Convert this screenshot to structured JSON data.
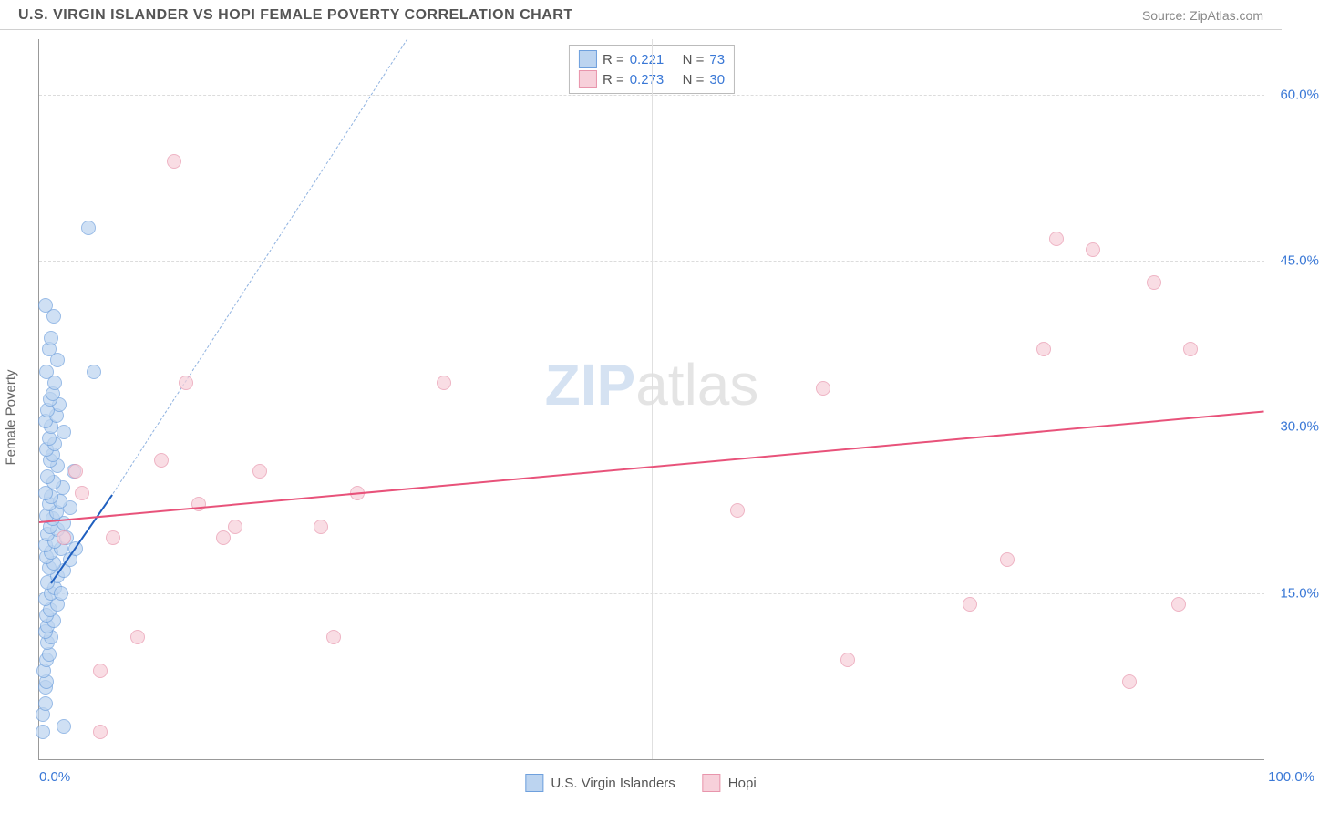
{
  "title": "U.S. VIRGIN ISLANDER VS HOPI FEMALE POVERTY CORRELATION CHART",
  "source": "Source: ZipAtlas.com",
  "watermark": {
    "part1": "ZIP",
    "part2": "atlas"
  },
  "chart": {
    "type": "scatter",
    "background_color": "#ffffff",
    "grid_color": "#dcdcdc",
    "axis_color": "#999999",
    "tick_color": "#3a78d6",
    "ylabel": "Female Poverty",
    "xlim": [
      0,
      100
    ],
    "ylim": [
      0,
      65
    ],
    "xticks": [
      {
        "value": 0,
        "label": "0.0%"
      },
      {
        "value": 100,
        "label": "100.0%"
      }
    ],
    "x_gridlines": [
      50
    ],
    "yticks": [
      {
        "value": 15,
        "label": "15.0%"
      },
      {
        "value": 30,
        "label": "30.0%"
      },
      {
        "value": 45,
        "label": "45.0%"
      },
      {
        "value": 60,
        "label": "60.0%"
      }
    ],
    "marker_radius": 8,
    "series": [
      {
        "name": "U.S. Virgin Islanders",
        "fill_color": "#bcd4f0",
        "stroke_color": "#6fa0dd",
        "fill_opacity": 0.7,
        "trend_color": "#1f5fbf",
        "trend_dash_color": "#8fb2e0",
        "trend": {
          "x1": 1,
          "y1": 16,
          "x2": 6,
          "y2": 24
        },
        "trend_dash": {
          "x1": 6,
          "y1": 24,
          "x2": 30,
          "y2": 65
        },
        "stats": {
          "R_label": "R =",
          "R": "0.221",
          "N_label": "N =",
          "N": "73"
        },
        "points": [
          [
            0.3,
            2.5
          ],
          [
            0.3,
            4
          ],
          [
            0.5,
            5
          ],
          [
            0.5,
            6.5
          ],
          [
            0.6,
            7
          ],
          [
            0.4,
            8
          ],
          [
            0.6,
            9
          ],
          [
            0.8,
            9.5
          ],
          [
            0.7,
            10.5
          ],
          [
            1.0,
            11
          ],
          [
            0.5,
            11.5
          ],
          [
            0.7,
            12
          ],
          [
            1.2,
            12.5
          ],
          [
            0.6,
            13
          ],
          [
            0.9,
            13.5
          ],
          [
            1.5,
            14
          ],
          [
            0.5,
            14.5
          ],
          [
            1.0,
            15
          ],
          [
            1.3,
            15.5
          ],
          [
            0.7,
            16
          ],
          [
            1.5,
            16.5
          ],
          [
            2.0,
            17
          ],
          [
            0.8,
            17.3
          ],
          [
            1.2,
            17.7
          ],
          [
            2.5,
            18
          ],
          [
            0.6,
            18.3
          ],
          [
            1.0,
            18.7
          ],
          [
            1.8,
            19
          ],
          [
            0.5,
            19.3
          ],
          [
            1.3,
            19.7
          ],
          [
            2.2,
            20
          ],
          [
            0.7,
            20.3
          ],
          [
            1.5,
            20.7
          ],
          [
            0.9,
            21
          ],
          [
            2.0,
            21.3
          ],
          [
            1.1,
            21.7
          ],
          [
            0.6,
            22
          ],
          [
            1.4,
            22.3
          ],
          [
            2.5,
            22.7
          ],
          [
            0.8,
            23
          ],
          [
            1.7,
            23.3
          ],
          [
            1.0,
            23.7
          ],
          [
            0.5,
            24
          ],
          [
            1.9,
            24.5
          ],
          [
            1.2,
            25
          ],
          [
            0.7,
            25.5
          ],
          [
            2.8,
            26
          ],
          [
            1.5,
            26.5
          ],
          [
            0.9,
            27
          ],
          [
            1.1,
            27.5
          ],
          [
            0.6,
            28
          ],
          [
            1.3,
            28.5
          ],
          [
            0.8,
            29
          ],
          [
            2.0,
            29.5
          ],
          [
            1.0,
            30
          ],
          [
            0.5,
            30.5
          ],
          [
            1.4,
            31
          ],
          [
            0.7,
            31.5
          ],
          [
            1.6,
            32
          ],
          [
            0.9,
            32.5
          ],
          [
            1.1,
            33
          ],
          [
            1.3,
            34
          ],
          [
            0.6,
            35
          ],
          [
            1.5,
            36
          ],
          [
            0.8,
            37
          ],
          [
            1.0,
            38
          ],
          [
            1.2,
            40
          ],
          [
            0.5,
            41
          ],
          [
            1.8,
            15
          ],
          [
            3.0,
            19
          ],
          [
            4.5,
            35
          ],
          [
            2.0,
            3
          ],
          [
            4.0,
            48
          ]
        ]
      },
      {
        "name": "Hopi",
        "fill_color": "#f7d0da",
        "stroke_color": "#e895ac",
        "fill_opacity": 0.7,
        "trend_color": "#e8527a",
        "trend": {
          "x1": 0,
          "y1": 21.5,
          "x2": 100,
          "y2": 31.5
        },
        "stats": {
          "R_label": "R =",
          "R": "0.273",
          "N_label": "N =",
          "N": "30"
        },
        "points": [
          [
            2,
            20
          ],
          [
            3,
            26
          ],
          [
            3.5,
            24
          ],
          [
            5,
            8
          ],
          [
            5,
            2.5
          ],
          [
            6,
            20
          ],
          [
            8,
            11
          ],
          [
            10,
            27
          ],
          [
            11,
            54
          ],
          [
            12,
            34
          ],
          [
            13,
            23
          ],
          [
            15,
            20
          ],
          [
            16,
            21
          ],
          [
            18,
            26
          ],
          [
            23,
            21
          ],
          [
            24,
            11
          ],
          [
            26,
            24
          ],
          [
            33,
            34
          ],
          [
            57,
            22.5
          ],
          [
            64,
            33.5
          ],
          [
            66,
            9
          ],
          [
            76,
            14
          ],
          [
            79,
            18
          ],
          [
            82,
            37
          ],
          [
            83,
            47
          ],
          [
            86,
            46
          ],
          [
            89,
            7
          ],
          [
            91,
            43
          ],
          [
            94,
            37
          ],
          [
            93,
            14
          ]
        ]
      }
    ],
    "bottom_legend": [
      {
        "label": "U.S. Virgin Islanders",
        "fill": "#bcd4f0",
        "stroke": "#6fa0dd"
      },
      {
        "label": "Hopi",
        "fill": "#f7d0da",
        "stroke": "#e895ac"
      }
    ]
  }
}
